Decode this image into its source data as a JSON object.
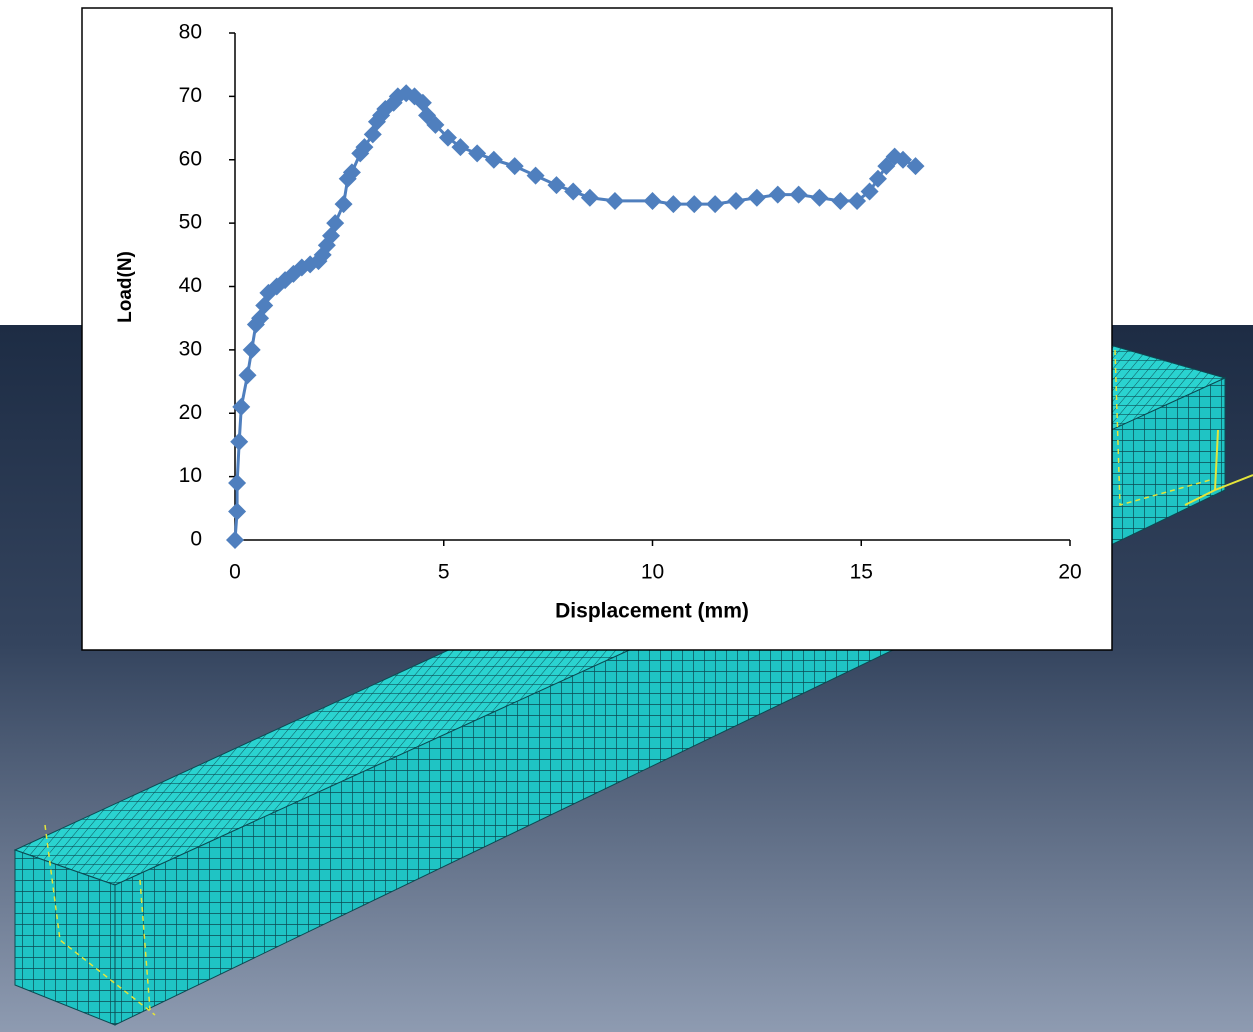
{
  "chart_data": {
    "type": "line",
    "marker": "diamond",
    "color": "#4f7fbe",
    "x_label": "Displacement (mm)",
    "y_label": "Load(N)",
    "x": [
      0,
      0.05,
      0.05,
      0.1,
      0.15,
      0.3,
      0.4,
      0.5,
      0.6,
      0.7,
      0.8,
      1,
      1.2,
      1.4,
      1.6,
      1.8,
      2,
      2.1,
      2.2,
      2.3,
      2.4,
      2.6,
      2.7,
      2.8,
      3,
      3.1,
      3.3,
      3.4,
      3.5,
      3.6,
      3.8,
      3.9,
      4.1,
      4.3,
      4.5,
      4.6,
      4.8,
      5.1,
      5.4,
      5.8,
      6.2,
      6.7,
      7.2,
      7.7,
      8.1,
      8.5,
      9.1,
      10,
      10.5,
      11,
      11.5,
      12,
      12.5,
      13,
      13.5,
      14,
      14.5,
      14.9,
      15.2,
      15.4,
      15.6,
      15.8,
      16,
      16.3
    ],
    "values": [
      0,
      4.5,
      9,
      15.5,
      21,
      26,
      30,
      34,
      35,
      37,
      39,
      40,
      41,
      42,
      43,
      43.5,
      44,
      45,
      46.5,
      48,
      50,
      53,
      57,
      58,
      61,
      62,
      64,
      66,
      67,
      68,
      69,
      70,
      70.5,
      70,
      69,
      67,
      65.5,
      63.5,
      62,
      61,
      60,
      59,
      57.5,
      56,
      55,
      54,
      53.5,
      53.5,
      53,
      53,
      53,
      53.5,
      54,
      54.5,
      54.5,
      54,
      53.5,
      53.5,
      55,
      57,
      59,
      60.5,
      60,
      59
    ],
    "xlim": [
      0,
      20
    ],
    "xticks": [
      0,
      5,
      10,
      15,
      20
    ],
    "ylim": [
      0,
      80
    ],
    "yticks": [
      0,
      10,
      20,
      30,
      40,
      50,
      60,
      70,
      80
    ]
  }
}
